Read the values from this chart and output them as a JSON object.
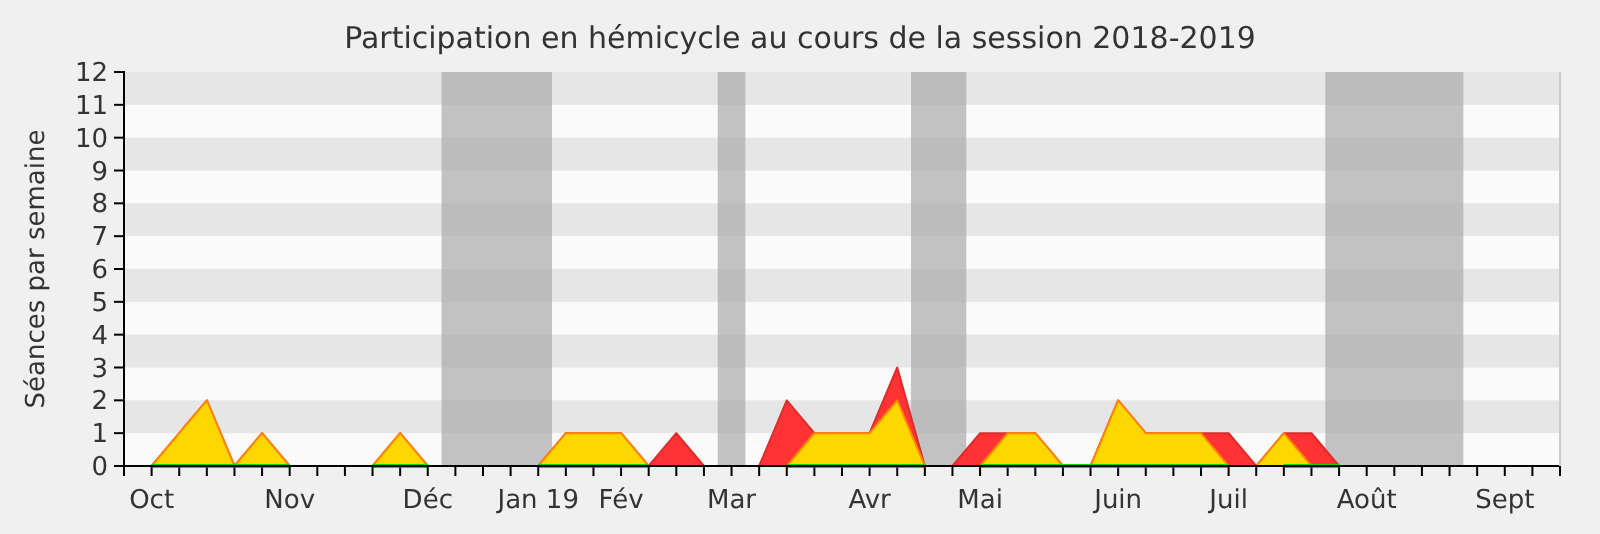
{
  "chart_data": {
    "type": "area",
    "stacked": true,
    "title": "Participation en hémicycle au cours de la session 2018-2019",
    "ylabel": "Séances par semaine",
    "categories": [
      null,
      "Oct",
      null,
      null,
      null,
      null,
      "Nov",
      null,
      null,
      null,
      null,
      "Déc",
      null,
      null,
      null,
      "Jan 19",
      null,
      null,
      "Fév",
      null,
      null,
      null,
      "Mar",
      null,
      null,
      null,
      null,
      "Avr",
      null,
      null,
      null,
      "Mai",
      null,
      null,
      null,
      null,
      "Juin",
      null,
      null,
      null,
      "Juil",
      null,
      null,
      null,
      null,
      "Août",
      null,
      null,
      null,
      null,
      "Sept",
      null,
      null
    ],
    "series": [
      {
        "color": "#ffd700",
        "values": [
          0,
          0,
          1,
          2,
          0,
          1,
          0,
          0,
          0,
          0,
          1,
          0,
          0,
          0,
          0,
          0,
          1,
          1,
          1,
          0,
          0,
          0,
          0,
          0,
          0,
          1,
          1,
          1,
          2,
          0,
          0,
          0,
          1,
          1,
          0,
          0,
          2,
          1,
          1,
          1,
          0,
          0,
          1,
          0,
          0,
          0,
          0,
          0,
          0,
          0,
          0,
          0,
          0
        ]
      },
      {
        "color": "#ff3333",
        "values": [
          0,
          0,
          0,
          0,
          0,
          0,
          0,
          0,
          0,
          0,
          0,
          0,
          0,
          0,
          0,
          0,
          0,
          0,
          0,
          0,
          1,
          0,
          0,
          0,
          2,
          0,
          0,
          0,
          1,
          0,
          0,
          1,
          0,
          0,
          0,
          0,
          0,
          0,
          0,
          0,
          1,
          0,
          0,
          1,
          0,
          0,
          0,
          0,
          0,
          0,
          0,
          0,
          0
        ]
      },
      {
        "type": "line",
        "color": "#00dd00",
        "values": [
          null,
          0,
          0,
          0,
          0,
          0,
          0,
          null,
          null,
          0,
          0,
          0,
          null,
          null,
          null,
          0,
          0,
          0,
          0,
          0,
          null,
          null,
          null,
          null,
          0,
          0,
          0,
          0,
          0,
          0,
          null,
          0,
          0,
          0,
          0,
          0,
          0,
          0,
          0,
          0,
          0,
          null,
          0,
          0,
          0,
          null,
          null,
          null,
          null,
          null,
          null,
          null,
          null
        ]
      }
    ],
    "ylim": [
      0,
      12
    ],
    "yticks": [
      0,
      1,
      2,
      3,
      4,
      5,
      6,
      7,
      8,
      9,
      10,
      11,
      12
    ],
    "grid": false
  }
}
